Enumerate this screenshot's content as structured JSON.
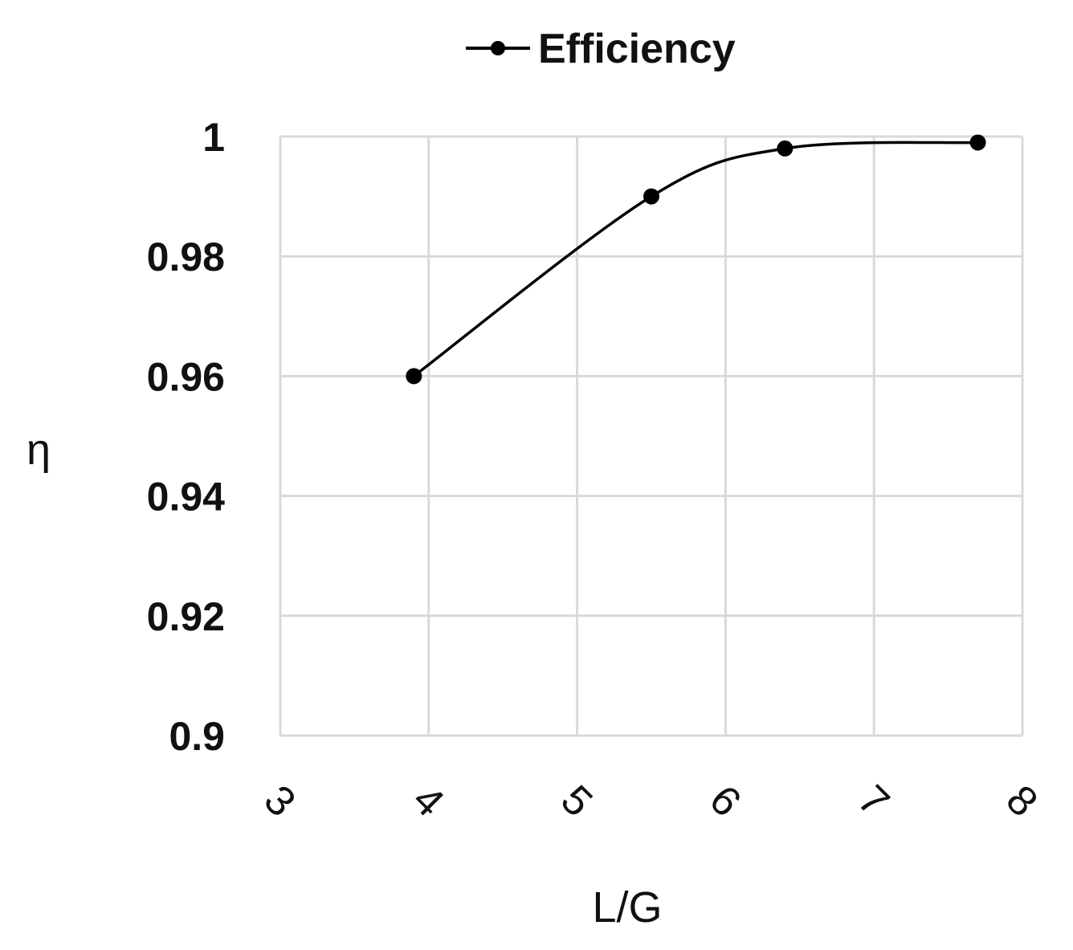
{
  "chart_data": {
    "type": "line",
    "series": [
      {
        "name": "Efficiency",
        "x": [
          3.9,
          5.5,
          6.4,
          7.7
        ],
        "y": [
          0.96,
          0.99,
          0.998,
          0.999
        ]
      }
    ],
    "xlabel": "L/G",
    "ylabel": "η",
    "xlim": [
      3,
      8
    ],
    "ylim": [
      0.9,
      1
    ],
    "x_ticks": [
      "3",
      "4",
      "5",
      "6",
      "7",
      "8"
    ],
    "y_ticks": [
      "0.9",
      "0.92",
      "0.94",
      "0.96",
      "0.98",
      "1"
    ],
    "grid": true,
    "legend": "top-center",
    "line_color": "#000000",
    "grid_color": "#d9d9d9",
    "smooth": true
  }
}
